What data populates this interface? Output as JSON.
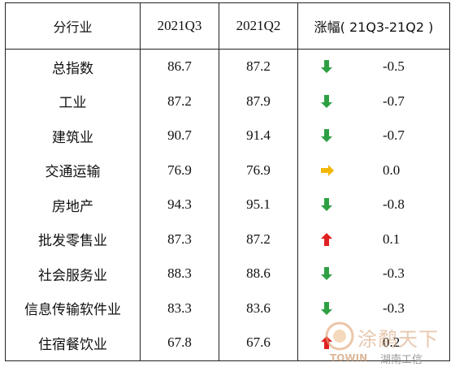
{
  "table": {
    "headers": [
      "分行业",
      "2021Q3",
      "2021Q2",
      "涨幅( 21Q3-21Q2 )"
    ],
    "rows": [
      {
        "name": "总指数",
        "q3": "86.7",
        "q2": "87.2",
        "trend": "down",
        "change": "-0.5"
      },
      {
        "name": "工业",
        "q3": "87.2",
        "q2": "87.9",
        "trend": "down",
        "change": "-0.7"
      },
      {
        "name": "建筑业",
        "q3": "90.7",
        "q2": "91.4",
        "trend": "down",
        "change": "-0.7"
      },
      {
        "name": "交通运输",
        "q3": "76.9",
        "q2": "76.9",
        "trend": "flat",
        "change": "0.0"
      },
      {
        "name": "房地产",
        "q3": "94.3",
        "q2": "95.1",
        "trend": "down",
        "change": "-0.8"
      },
      {
        "name": "批发零售业",
        "q3": "87.3",
        "q2": "87.2",
        "trend": "up",
        "change": "0.1"
      },
      {
        "name": "社会服务业",
        "q3": "88.3",
        "q2": "88.6",
        "trend": "down",
        "change": "-0.3"
      },
      {
        "name": "信息传输软件业",
        "q3": "83.3",
        "q2": "83.6",
        "trend": "down",
        "change": "-0.3"
      },
      {
        "name": "住宿餐饮业",
        "q3": "67.8",
        "q2": "67.6",
        "trend": "up",
        "change": "0.2"
      }
    ]
  },
  "colors": {
    "down": "#2ea043",
    "up": "#e02020",
    "flat": "#f2b705"
  },
  "watermark": {
    "logo_text": "涂鹬天下",
    "brand": "TOWIN",
    "tag": "湖南工信"
  }
}
